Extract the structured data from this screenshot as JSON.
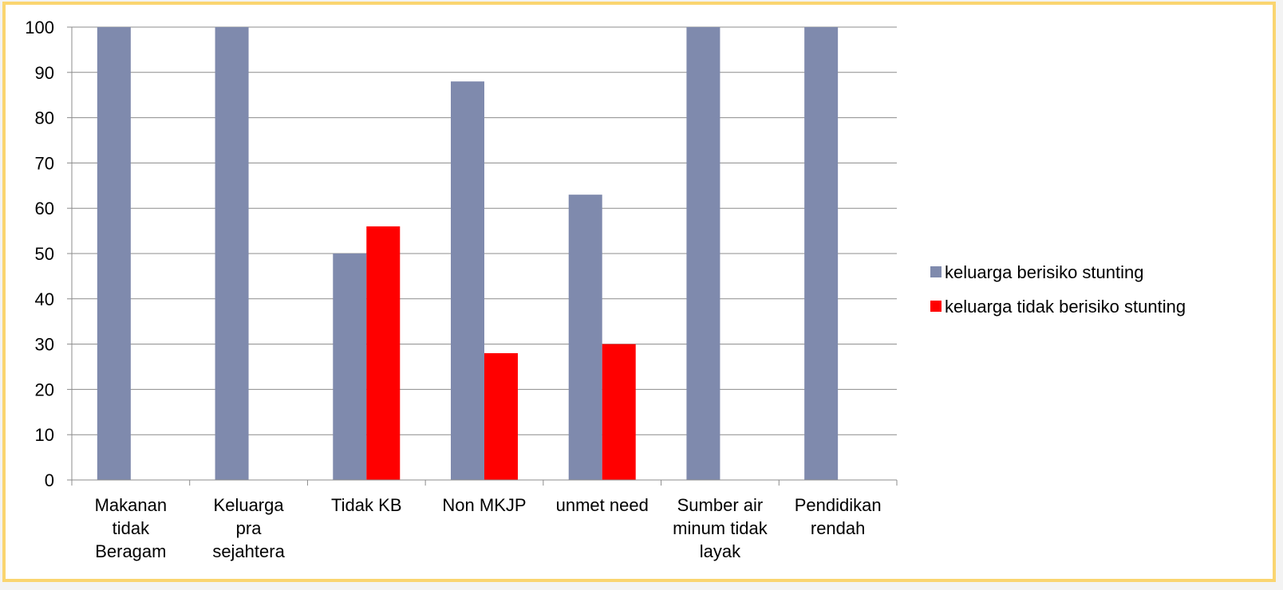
{
  "chart_data": {
    "type": "bar",
    "categories": [
      [
        "Makanan",
        "tidak",
        "Beragam"
      ],
      [
        "Keluarga",
        "pra",
        "sejahtera"
      ],
      [
        "Tidak KB"
      ],
      [
        "Non MKJP"
      ],
      [
        "unmet need"
      ],
      [
        "Sumber air",
        "minum tidak",
        "layak"
      ],
      [
        "Pendidikan",
        "rendah"
      ]
    ],
    "series": [
      {
        "name": "keluarga berisiko stunting",
        "color": "#7f8aad",
        "values": [
          100,
          100,
          50,
          88,
          63,
          100,
          100
        ]
      },
      {
        "name": "keluarga tidak berisiko stunting",
        "color": "#ff0000",
        "values": [
          0,
          0,
          56,
          28,
          30,
          0,
          0
        ]
      }
    ],
    "ylim": [
      0,
      100
    ],
    "yticks": [
      0,
      10,
      20,
      30,
      40,
      50,
      60,
      70,
      80,
      90,
      100
    ],
    "grid": true,
    "legend_position": "right"
  }
}
